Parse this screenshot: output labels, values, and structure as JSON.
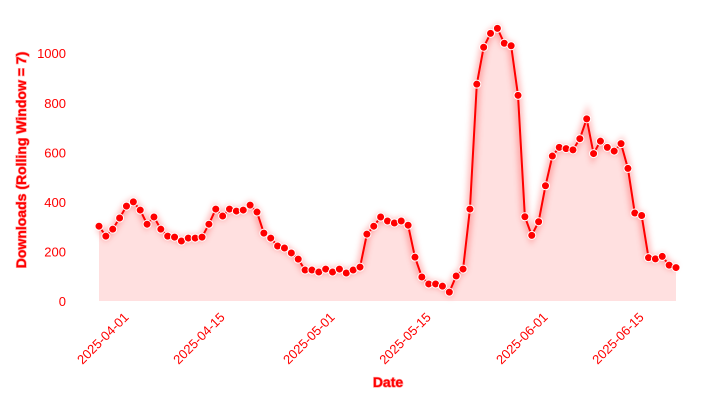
{
  "chart_data": {
    "type": "line",
    "x_label": "Date",
    "y_label": "Downloads (Rolling Window = 7)",
    "x": [
      "2025-03-28",
      "2025-03-29",
      "2025-03-30",
      "2025-03-31",
      "2025-04-01",
      "2025-04-02",
      "2025-04-03",
      "2025-04-04",
      "2025-04-05",
      "2025-04-06",
      "2025-04-07",
      "2025-04-08",
      "2025-04-09",
      "2025-04-10",
      "2025-04-11",
      "2025-04-12",
      "2025-04-13",
      "2025-04-14",
      "2025-04-15",
      "2025-04-16",
      "2025-04-17",
      "2025-04-18",
      "2025-04-19",
      "2025-04-20",
      "2025-04-21",
      "2025-04-22",
      "2025-04-23",
      "2025-04-24",
      "2025-04-25",
      "2025-04-26",
      "2025-04-27",
      "2025-04-28",
      "2025-04-29",
      "2025-04-30",
      "2025-05-01",
      "2025-05-02",
      "2025-05-03",
      "2025-05-04",
      "2025-05-05",
      "2025-05-06",
      "2025-05-07",
      "2025-05-08",
      "2025-05-09",
      "2025-05-10",
      "2025-05-11",
      "2025-05-12",
      "2025-05-13",
      "2025-05-14",
      "2025-05-15",
      "2025-05-16",
      "2025-05-17",
      "2025-05-18",
      "2025-05-19",
      "2025-05-20",
      "2025-05-21",
      "2025-05-22",
      "2025-05-23",
      "2025-05-24",
      "2025-05-25",
      "2025-05-26",
      "2025-05-27",
      "2025-05-28",
      "2025-05-29",
      "2025-05-30",
      "2025-05-31",
      "2025-06-01",
      "2025-06-02",
      "2025-06-03",
      "2025-06-04",
      "2025-06-05",
      "2025-06-06",
      "2025-06-07",
      "2025-06-08",
      "2025-06-09",
      "2025-06-10",
      "2025-06-11",
      "2025-06-12",
      "2025-06-13",
      "2025-06-14",
      "2025-06-15",
      "2025-06-16",
      "2025-06-17",
      "2025-06-18",
      "2025-06-19",
      "2025-06-20"
    ],
    "series": [
      {
        "color": "#ff0000",
        "values": [
          302,
          262,
          290,
          335,
          383,
          400,
          367,
          310,
          339,
          290,
          262,
          258,
          242,
          254,
          254,
          258,
          310,
          371,
          343,
          371,
          363,
          367,
          387,
          359,
          274,
          254,
          222,
          214,
          194,
          169,
          125,
          125,
          117,
          129,
          117,
          129,
          113,
          125,
          137,
          270,
          302,
          339,
          323,
          315,
          323,
          306,
          177,
          97,
          69,
          69,
          60,
          36,
          101,
          129,
          371,
          875,
          1024,
          1080,
          1100,
          1040,
          1030,
          830,
          340,
          265,
          320,
          465,
          585,
          620,
          615,
          610,
          655,
          735,
          595,
          645,
          620,
          605,
          635,
          535,
          355,
          345,
          175,
          170,
          180,
          145,
          135
        ]
      }
    ],
    "xlim": [
      "2025-03-28",
      "2025-06-20"
    ],
    "xticks": [
      "2025-04-01",
      "2025-04-15",
      "2025-05-01",
      "2025-05-15",
      "2025-06-01",
      "2025-06-15"
    ],
    "ylim": [
      -20,
      1150
    ],
    "yticks": [
      0,
      200,
      400,
      600,
      800,
      1000
    ],
    "grid": false
  }
}
